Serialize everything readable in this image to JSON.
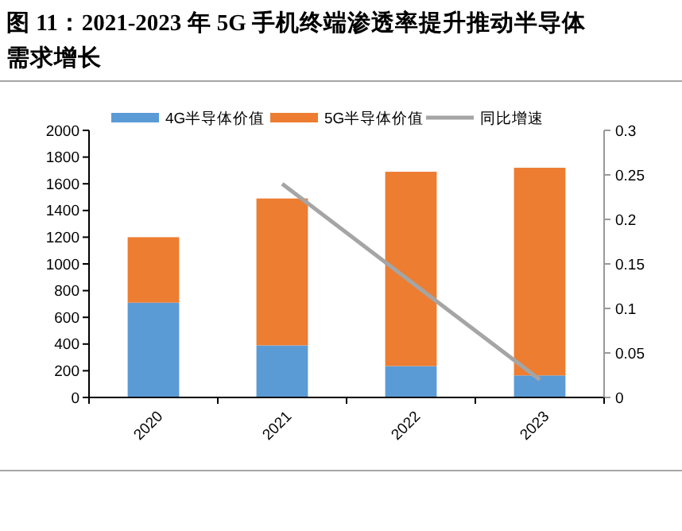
{
  "chart_data": {
    "type": "bar",
    "title": "图 11：2021-2023 年 5G 手机终端渗透率提升推动半导体需求增长",
    "categories": [
      "2020",
      "2021",
      "2022",
      "2023"
    ],
    "stacked": true,
    "series": [
      {
        "name": "4G半导体价值",
        "color": "#5b9bd5",
        "values": [
          710,
          390,
          235,
          165
        ]
      },
      {
        "name": "5G半导体价值",
        "color": "#ed7d31",
        "values": [
          490,
          1100,
          1455,
          1555
        ]
      },
      {
        "name": "同比增速",
        "type": "line",
        "axis": "y2",
        "color": "#a5a5a5",
        "values": [
          null,
          0.24,
          0.13,
          0.02
        ]
      }
    ],
    "ylim": [
      0,
      2000
    ],
    "yticks": [
      0,
      200,
      400,
      600,
      800,
      1000,
      1200,
      1400,
      1600,
      1800,
      2000
    ],
    "y2lim": [
      0,
      0.3
    ],
    "y2ticks": [
      0,
      0.05,
      0.1,
      0.15,
      0.2,
      0.25,
      0.3
    ],
    "legend": "top",
    "marker": "none",
    "grid": false
  }
}
